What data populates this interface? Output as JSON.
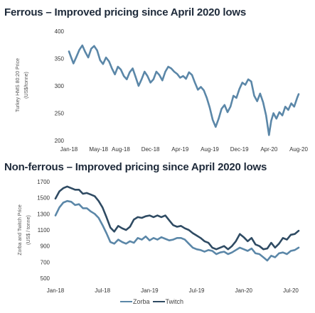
{
  "chart_data": [
    {
      "type": "line",
      "title": "Ferrous – Improved pricing since April 2020 lows",
      "ylabel_lines": [
        "Turkey HMS 80:20 Price",
        "(US$/tonne)"
      ],
      "ylim": [
        200,
        400
      ],
      "yticks": [
        200,
        250,
        300,
        350,
        400
      ],
      "xlim": [
        0,
        31
      ],
      "xticks": [
        {
          "label": "Jan-18",
          "x": 0
        },
        {
          "label": "May-18",
          "x": 4
        },
        {
          "label": "Aug-18",
          "x": 7
        },
        {
          "label": "Dec-18",
          "x": 11
        },
        {
          "label": "Apr-19",
          "x": 15
        },
        {
          "label": "Aug-19",
          "x": 19
        },
        {
          "label": "Dec-19",
          "x": 23
        },
        {
          "label": "Apr-20",
          "x": 27
        },
        {
          "label": "Aug-20",
          "x": 31
        }
      ],
      "color": "#5b87a8",
      "series": [
        {
          "x": [
            0,
            0.3,
            0.6,
            1.0,
            1.4,
            1.8,
            2.2,
            2.6,
            3.0,
            3.4,
            3.8,
            4.2,
            4.6,
            5.0,
            5.4,
            5.8,
            6.2,
            6.6,
            7.0,
            7.4,
            7.8,
            8.2,
            8.6,
            9.0,
            9.4,
            9.8,
            10.2,
            10.6,
            11.0,
            11.4,
            11.8,
            12.2,
            12.6,
            13.0,
            13.4,
            13.8,
            14.2,
            14.6,
            15.0,
            15.4,
            15.8,
            16.2,
            16.6,
            17.0,
            17.4,
            17.8,
            18.2,
            18.6,
            19.0,
            19.4,
            19.8,
            20.2,
            20.6,
            21.0,
            21.4,
            21.8,
            22.2,
            22.6,
            23.0,
            23.4,
            23.8,
            24.2,
            24.6,
            25.0,
            25.4,
            25.8,
            26.2,
            26.6,
            27.0,
            27.3,
            27.6,
            28.0,
            28.4,
            28.8,
            29.2,
            29.6,
            30.0,
            30.4,
            30.8,
            31.0
          ],
          "y": [
            363,
            352,
            341,
            353,
            366,
            374,
            362,
            352,
            368,
            373,
            365,
            347,
            340,
            352,
            345,
            332,
            321,
            335,
            330,
            318,
            312,
            325,
            332,
            316,
            300,
            312,
            326,
            318,
            306,
            312,
            326,
            320,
            310,
            326,
            335,
            332,
            326,
            322,
            315,
            318,
            313,
            325,
            320,
            306,
            293,
            298,
            292,
            278,
            260,
            238,
            225,
            240,
            258,
            265,
            252,
            262,
            282,
            278,
            294,
            306,
            302,
            312,
            308,
            282,
            272,
            286,
            270,
            246,
            210,
            236,
            250,
            240,
            252,
            246,
            262,
            256,
            268,
            262,
            278,
            285
          ]
        }
      ]
    },
    {
      "type": "line",
      "title": "Non-ferrous – Improved pricing since April 2020 lows",
      "ylabel_lines": [
        "Zorba and Twitch Price",
        "(US$ / tonne)"
      ],
      "ylim": [
        500,
        1700
      ],
      "yticks": [
        500,
        700,
        900,
        1100,
        1300,
        1500,
        1700
      ],
      "xlim": [
        0,
        31
      ],
      "xticks": [
        {
          "label": "Jan-18",
          "x": 0
        },
        {
          "label": "Jul-18",
          "x": 6
        },
        {
          "label": "Jan-19",
          "x": 12
        },
        {
          "label": "Jul-19",
          "x": 18
        },
        {
          "label": "Jan-20",
          "x": 24
        },
        {
          "label": "Jul-20",
          "x": 30
        }
      ],
      "legend": {
        "position": "bottom"
      },
      "series": [
        {
          "name": "Zorba",
          "color": "#5b87a8",
          "x": [
            0,
            0.5,
            1.0,
            1.5,
            2.0,
            2.5,
            3.0,
            3.5,
            4.0,
            4.5,
            5.0,
            5.5,
            6.0,
            6.5,
            7.0,
            7.5,
            8.0,
            8.5,
            9.0,
            9.5,
            10.0,
            10.5,
            11.0,
            11.5,
            12.0,
            12.5,
            13.0,
            13.5,
            14.0,
            14.5,
            15.0,
            15.5,
            16.0,
            16.5,
            17.0,
            17.5,
            18.0,
            18.5,
            19.0,
            19.5,
            20.0,
            20.5,
            21.0,
            21.5,
            22.0,
            22.5,
            23.0,
            23.5,
            24.0,
            24.5,
            25.0,
            25.5,
            26.0,
            26.5,
            27.0,
            27.5,
            28.0,
            28.5,
            29.0,
            29.5,
            30.0,
            30.5,
            31.0
          ],
          "y": [
            1280,
            1380,
            1440,
            1460,
            1450,
            1410,
            1420,
            1370,
            1370,
            1330,
            1300,
            1250,
            1160,
            1060,
            950,
            930,
            980,
            950,
            930,
            960,
            940,
            1000,
            980,
            1020,
            970,
            1000,
            980,
            1010,
            990,
            970,
            980,
            1000,
            1000,
            980,
            930,
            880,
            860,
            850,
            830,
            850,
            840,
            800,
            820,
            830,
            800,
            820,
            850,
            880,
            860,
            840,
            870,
            810,
            800,
            760,
            720,
            780,
            760,
            810,
            820,
            800,
            840,
            850,
            880
          ]
        },
        {
          "name": "Twitch",
          "color": "#2f4b63",
          "x": [
            0,
            0.5,
            1.0,
            1.5,
            2.0,
            2.5,
            3.0,
            3.5,
            4.0,
            4.5,
            5.0,
            5.5,
            6.0,
            6.5,
            7.0,
            7.5,
            8.0,
            8.5,
            9.0,
            9.5,
            10.0,
            10.5,
            11.0,
            11.5,
            12.0,
            12.5,
            13.0,
            13.5,
            14.0,
            14.5,
            15.0,
            15.5,
            16.0,
            16.5,
            17.0,
            17.5,
            18.0,
            18.5,
            19.0,
            19.5,
            20.0,
            20.5,
            21.0,
            21.5,
            22.0,
            22.5,
            23.0,
            23.5,
            24.0,
            24.5,
            25.0,
            25.5,
            26.0,
            26.5,
            27.0,
            27.5,
            28.0,
            28.5,
            29.0,
            29.5,
            30.0,
            30.5,
            31.0
          ],
          "y": [
            1490,
            1580,
            1620,
            1640,
            1620,
            1600,
            1600,
            1550,
            1560,
            1540,
            1520,
            1460,
            1380,
            1260,
            1130,
            1080,
            1150,
            1120,
            1100,
            1140,
            1230,
            1260,
            1250,
            1270,
            1280,
            1260,
            1280,
            1260,
            1280,
            1220,
            1160,
            1140,
            1150,
            1120,
            1100,
            1060,
            1030,
            1000,
            960,
            940,
            880,
            860,
            880,
            900,
            860,
            900,
            960,
            1050,
            1010,
            960,
            1000,
            920,
            900,
            860,
            870,
            940,
            880,
            930,
            1000,
            980,
            1040,
            1050,
            1090
          ]
        }
      ]
    }
  ]
}
